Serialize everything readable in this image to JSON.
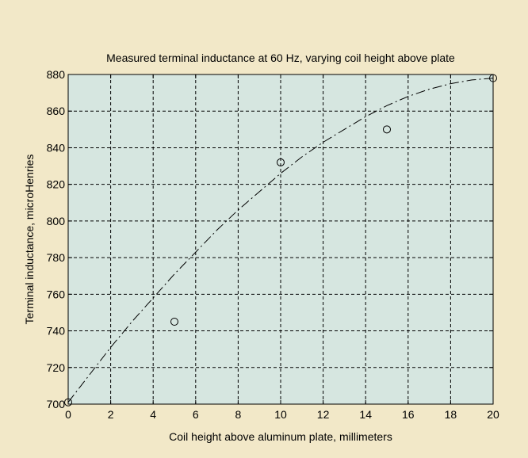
{
  "figure": {
    "background_color": "#f2e8c8",
    "plot_background_color": "#d6e6e0"
  },
  "chart_data": {
    "type": "scatter",
    "title": "Measured terminal inductance at 60 Hz, varying coil height above plate",
    "xlabel": "Coil height above aluminum plate, millimeters",
    "ylabel": "Terminal inductance, microHenries",
    "xlim": [
      0,
      20
    ],
    "ylim": [
      700,
      880
    ],
    "x_ticks": [
      0,
      2,
      4,
      6,
      8,
      10,
      12,
      14,
      16,
      18,
      20
    ],
    "y_ticks": [
      700,
      720,
      740,
      760,
      780,
      800,
      820,
      840,
      860,
      880
    ],
    "grid": true,
    "grid_style": "dashed",
    "series": [
      {
        "kind": "markers",
        "marker": "circle-open",
        "x": [
          0,
          5,
          10,
          15,
          20
        ],
        "y": [
          701,
          745,
          832,
          850,
          878
        ]
      },
      {
        "kind": "fit-line",
        "line_style": "dash-dot",
        "x": [
          0,
          1,
          2,
          3,
          4,
          5,
          6,
          7,
          8,
          9,
          10,
          11,
          12,
          13,
          14,
          15,
          16,
          17,
          18,
          19,
          20
        ],
        "y": [
          701,
          716,
          731,
          745,
          758,
          771,
          783,
          795,
          806,
          816,
          826,
          835,
          843,
          850,
          857,
          863,
          868,
          872,
          875,
          877,
          878
        ]
      }
    ]
  }
}
